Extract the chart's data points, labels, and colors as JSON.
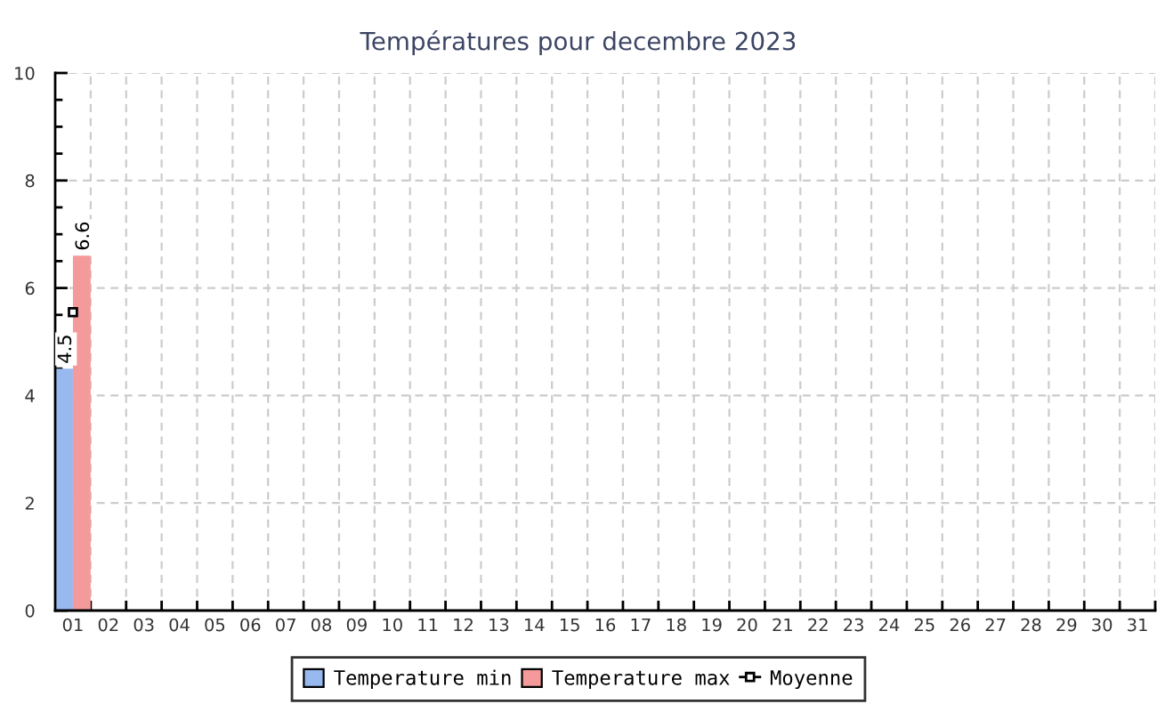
{
  "chart_data": {
    "type": "bar",
    "title": "Températures pour decembre 2023",
    "categories": [
      "01",
      "02",
      "03",
      "04",
      "05",
      "06",
      "07",
      "08",
      "09",
      "10",
      "11",
      "12",
      "13",
      "14",
      "15",
      "16",
      "17",
      "18",
      "19",
      "20",
      "21",
      "22",
      "23",
      "24",
      "25",
      "26",
      "27",
      "28",
      "29",
      "30",
      "31"
    ],
    "series": [
      {
        "name": "Temperature min",
        "color": "#97b9f0",
        "values": [
          4.5,
          null,
          null,
          null,
          null,
          null,
          null,
          null,
          null,
          null,
          null,
          null,
          null,
          null,
          null,
          null,
          null,
          null,
          null,
          null,
          null,
          null,
          null,
          null,
          null,
          null,
          null,
          null,
          null,
          null,
          null
        ],
        "value_labels": [
          "4.5",
          null,
          null,
          null,
          null,
          null,
          null,
          null,
          null,
          null,
          null,
          null,
          null,
          null,
          null,
          null,
          null,
          null,
          null,
          null,
          null,
          null,
          null,
          null,
          null,
          null,
          null,
          null,
          null,
          null,
          null
        ]
      },
      {
        "name": "Temperature max",
        "color": "#f59a9a",
        "values": [
          6.6,
          null,
          null,
          null,
          null,
          null,
          null,
          null,
          null,
          null,
          null,
          null,
          null,
          null,
          null,
          null,
          null,
          null,
          null,
          null,
          null,
          null,
          null,
          null,
          null,
          null,
          null,
          null,
          null,
          null,
          null
        ],
        "value_labels": [
          "6.6",
          null,
          null,
          null,
          null,
          null,
          null,
          null,
          null,
          null,
          null,
          null,
          null,
          null,
          null,
          null,
          null,
          null,
          null,
          null,
          null,
          null,
          null,
          null,
          null,
          null,
          null,
          null,
          null,
          null,
          null
        ]
      },
      {
        "name": "Moyenne",
        "type": "line",
        "color": "#000000",
        "marker": "square",
        "line_style": "solid",
        "values": [
          5.55,
          null,
          null,
          null,
          null,
          null,
          null,
          null,
          null,
          null,
          null,
          null,
          null,
          null,
          null,
          null,
          null,
          null,
          null,
          null,
          null,
          null,
          null,
          null,
          null,
          null,
          null,
          null,
          null,
          null,
          null
        ]
      }
    ],
    "ylim": [
      0,
      10
    ],
    "yticks": [
      0,
      {
        "value": 0.5,
        "label": null
      },
      {
        "value": 1,
        "label": null
      },
      {
        "value": 1.5,
        "label": null
      },
      2,
      {
        "value": 2.5,
        "label": null
      },
      {
        "value": 3,
        "label": null
      },
      {
        "value": 3.5,
        "label": null
      },
      4,
      {
        "value": 4.5,
        "label": null
      },
      {
        "value": 5,
        "label": null
      },
      {
        "value": 5.5,
        "label": null
      },
      6,
      {
        "value": 6.5,
        "label": null
      },
      {
        "value": 7,
        "label": null
      },
      {
        "value": 7.5,
        "label": null
      },
      8,
      {
        "value": 8.5,
        "label": null
      },
      {
        "value": 9,
        "label": null
      },
      {
        "value": 9.5,
        "label": null
      },
      10
    ],
    "grid": true,
    "legend": "bottom"
  }
}
